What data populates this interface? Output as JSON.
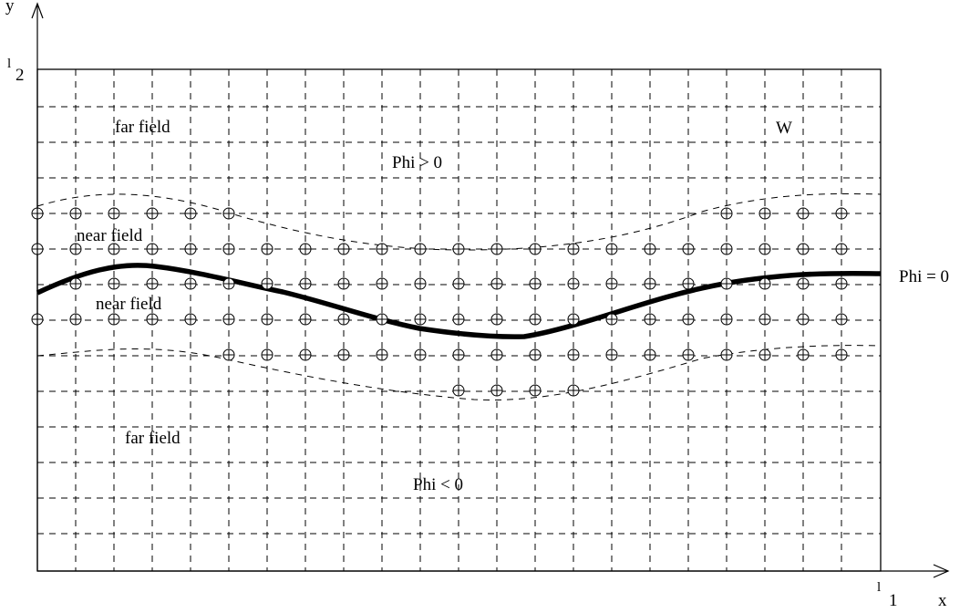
{
  "axes": {
    "x_label": "x",
    "y_label": "y",
    "x_extent_label": {
      "base": "l",
      "sub": "1"
    },
    "y_extent_label": {
      "base": "l",
      "sub": "2"
    }
  },
  "regions": {
    "far_field_top": "far field",
    "far_field_bottom": "far field",
    "near_field_top": "near field",
    "near_field_middle": "near field",
    "positive": "Phi > 0",
    "negative": "Phi < 0",
    "domain": "W"
  },
  "interface_label": "Phi = 0",
  "colors": {
    "ink": "#000000",
    "background": "#ffffff"
  },
  "icons": {
    "grid_node": "circle-with-cross",
    "axis_end": "open-arrowhead"
  }
}
